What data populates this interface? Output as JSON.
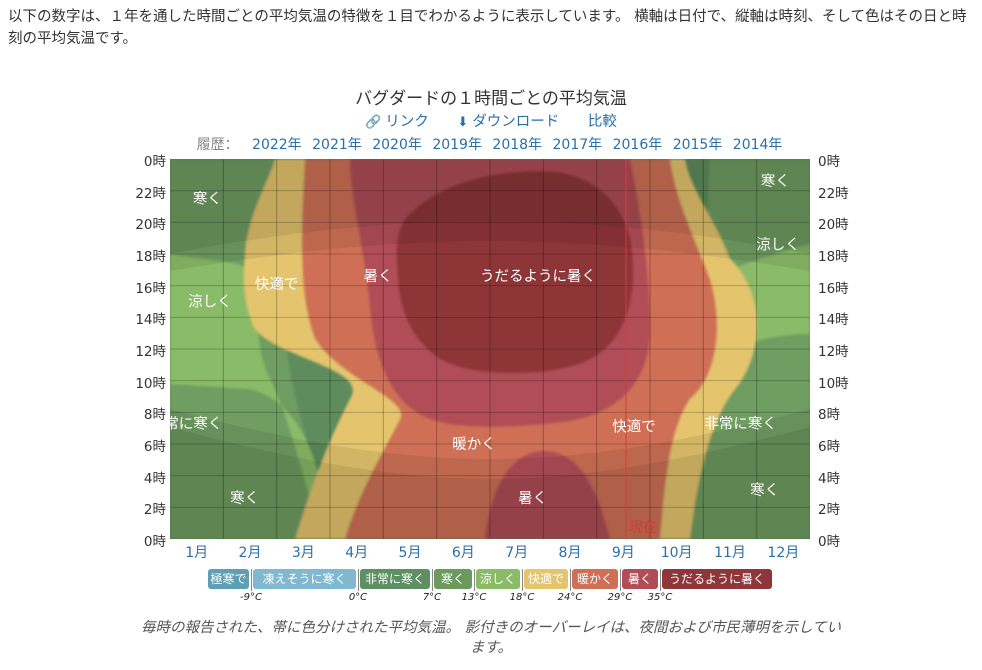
{
  "intro": "以下の数字は、１年を通した時間ごとの平均気温の特徴を１目でわかるように表示しています。 横軸は日付で、縦軸は時刻、そして色はその日と時刻の平均気温です。",
  "header": {
    "title": "バグダードの１時間ごとの平均気温",
    "link_label": "リンク",
    "download_label": "ダウンロード",
    "compare_label": "比較",
    "history_label": "履歴：",
    "history_years": [
      "2022年",
      "2021年",
      "2020年",
      "2019年",
      "2018年",
      "2017年",
      "2016年",
      "2015年",
      "2014年"
    ]
  },
  "caption": "毎時の報告された、帯に色分けされた平均気温。 影付きのオーバーレイは、夜間および市民薄明を示しています。",
  "colors": {
    "frigid": "#5f9fb4",
    "freezing": "#7fb8cf",
    "very_cold": "#5d8f62",
    "cold": "#6a9a5c",
    "cool": "#8abb67",
    "comfortable": "#e4c56e",
    "warm": "#cf6f56",
    "hot": "#b04d57",
    "sweltering": "#8e3639",
    "link": "#2a6fa8",
    "now_line": "#d23c3c"
  },
  "chart_data": {
    "type": "heatmap",
    "title": "バグダードの１時間ごとの平均気温",
    "x_labels": [
      "1月",
      "2月",
      "3月",
      "4月",
      "5月",
      "6月",
      "7月",
      "8月",
      "9月",
      "10月",
      "11月",
      "12月"
    ],
    "y_labels_left": [
      "0時",
      "22時",
      "20時",
      "18時",
      "16時",
      "14時",
      "12時",
      "10時",
      "8時",
      "6時",
      "4時",
      "2時",
      "0時"
    ],
    "y_labels_right": [
      "0時",
      "22時",
      "20時",
      "18時",
      "16時",
      "14時",
      "12時",
      "10時",
      "8時",
      "6時",
      "4時",
      "2時",
      "0時"
    ],
    "y_range_hours": [
      0,
      24
    ],
    "x_range_months": [
      0,
      12
    ],
    "now_month": 8.55,
    "now_label": "現在",
    "legend": [
      {
        "label": "極寒で",
        "color": "#5f9fb4"
      },
      {
        "label": "凍えそうに寒く",
        "color": "#7fb8cf"
      },
      {
        "label": "非常に寒く",
        "color": "#5d8f62"
      },
      {
        "label": "寒く",
        "color": "#6a9a5c"
      },
      {
        "label": "涼しく",
        "color": "#8abb67"
      },
      {
        "label": "快適で",
        "color": "#e4c56e"
      },
      {
        "label": "暖かく",
        "color": "#cf6f56"
      },
      {
        "label": "暑く",
        "color": "#b04d57"
      },
      {
        "label": "うだるように暑く",
        "color": "#8e3639"
      }
    ],
    "thresholds": [
      "-9°C",
      "0°C",
      "7°C",
      "13°C",
      "18°C",
      "24°C",
      "29°C",
      "35°C"
    ],
    "band_labels": [
      {
        "text": "寒く",
        "month": 0.7,
        "hour": 21.5
      },
      {
        "text": "涼しく",
        "month": 0.75,
        "hour": 15
      },
      {
        "text": "快適で",
        "month": 2.0,
        "hour": 16.1
      },
      {
        "text": "暑く",
        "month": 3.9,
        "hour": 16.6
      },
      {
        "text": "うだるように暑く",
        "month": 6.9,
        "hour": 16.6
      },
      {
        "text": "涼しく",
        "month": 11.4,
        "hour": 18.6
      },
      {
        "text": "寒く",
        "month": 11.35,
        "hour": 22.6
      },
      {
        "text": "非常に寒く",
        "month": 0.3,
        "hour": 7.3
      },
      {
        "text": "寒く",
        "month": 1.4,
        "hour": 2.6
      },
      {
        "text": "暖かく",
        "month": 5.7,
        "hour": 6.0
      },
      {
        "text": "暑く",
        "month": 6.8,
        "hour": 2.6
      },
      {
        "text": "快適で",
        "month": 8.7,
        "hour": 7.1
      },
      {
        "text": "非常に寒く",
        "month": 10.7,
        "hour": 7.3
      },
      {
        "text": "寒く",
        "month": 11.15,
        "hour": 3.1
      }
    ]
  }
}
